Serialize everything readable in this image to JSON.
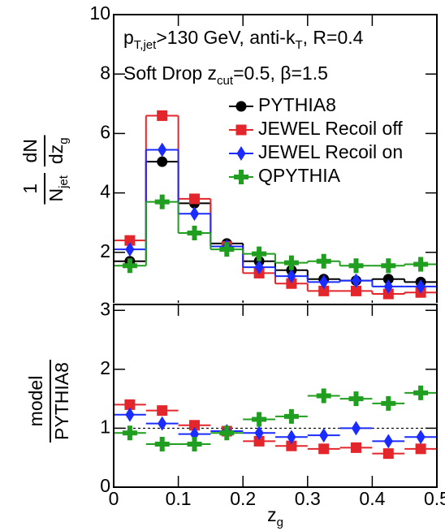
{
  "chart_data": [
    {
      "type": "histogram",
      "histtype": "step",
      "bins": [
        0,
        0.05,
        0.1,
        0.15,
        0.2,
        0.25,
        0.3,
        0.35,
        0.4,
        0.45,
        0.5
      ],
      "xlim": [
        0,
        0.5
      ],
      "xticks": [
        0,
        0.1,
        0.2,
        0.3,
        0.4,
        0.5
      ],
      "ylim": [
        0,
        10
      ],
      "yticks": [
        0,
        2,
        4,
        6,
        8,
        10
      ],
      "y_label": [
        {
          "num": [
            {
              "text": "1"
            }
          ],
          "den": [
            {
              "text": "N"
            },
            {
              "text": "jet",
              "sub": true
            }
          ]
        },
        {
          "num": [
            {
              "text": "dN"
            }
          ],
          "den": [
            {
              "text": "dz"
            },
            {
              "text": "g",
              "sub": true
            }
          ]
        }
      ],
      "annotations": [
        [
          {
            "text": "p"
          },
          {
            "text": "T,jet",
            "sub": true
          },
          {
            "text": ">130 GeV, anti-k"
          },
          {
            "text": "T",
            "sub": true
          },
          {
            "text": ", R=0.4"
          }
        ],
        [
          {
            "text": "Soft Drop z"
          },
          {
            "text": "cut",
            "sub": true
          },
          {
            "text": "=0.5, β=1.5"
          }
        ]
      ],
      "legend": "upper right",
      "series": [
        {
          "name": "PYTHIA8",
          "color": "#000000",
          "marker": "circle",
          "values": [
            1.7,
            5.05,
            3.65,
            2.3,
            1.7,
            1.4,
            1.1,
            1.05,
            1.1,
            1.0
          ]
        },
        {
          "name": "JEWEL Recoil off",
          "color": "#e3262b",
          "marker": "square",
          "values": [
            2.4,
            6.6,
            3.8,
            2.2,
            1.3,
            0.95,
            0.7,
            0.7,
            0.6,
            0.65
          ]
        },
        {
          "name": "JEWEL Recoil on",
          "color": "#1a2cff",
          "marker": "diamond",
          "values": [
            2.1,
            5.45,
            3.3,
            2.2,
            1.5,
            1.2,
            1.0,
            1.05,
            0.85,
            0.85
          ]
        },
        {
          "name": "QPYTHIA",
          "color": "#1f9e1f",
          "marker": "cross",
          "values": [
            1.55,
            3.7,
            2.65,
            2.1,
            1.95,
            1.65,
            1.7,
            1.55,
            1.55,
            1.6
          ]
        }
      ]
    },
    {
      "type": "histogram",
      "histtype": "points",
      "bins": [
        0,
        0.05,
        0.1,
        0.15,
        0.2,
        0.25,
        0.3,
        0.35,
        0.4,
        0.45,
        0.5
      ],
      "xlim": [
        0,
        0.5
      ],
      "xticks": [
        0,
        0.1,
        0.2,
        0.3,
        0.4,
        0.5
      ],
      "ylim": [
        0,
        3.1
      ],
      "yticks": [
        0,
        1,
        2,
        3
      ],
      "reference_line": 1,
      "x_label": [
        {
          "text": "z"
        },
        {
          "text": "g",
          "sub": true
        }
      ],
      "y_label": [
        {
          "num": [
            {
              "text": "model"
            }
          ],
          "den": [
            {
              "text": "PYTHIA8"
            }
          ]
        }
      ],
      "series": [
        {
          "color": "#e3262b",
          "marker": "square",
          "values": [
            1.4,
            1.3,
            1.05,
            0.95,
            0.78,
            0.7,
            0.65,
            0.67,
            0.57,
            0.65
          ]
        },
        {
          "color": "#1a2cff",
          "marker": "diamond",
          "values": [
            1.23,
            1.08,
            0.9,
            0.95,
            0.92,
            0.85,
            0.88,
            1.0,
            0.78,
            0.85
          ]
        },
        {
          "color": "#1f9e1f",
          "marker": "cross",
          "values": [
            0.92,
            0.73,
            0.73,
            0.92,
            1.15,
            1.2,
            1.55,
            1.5,
            1.42,
            1.6
          ]
        }
      ]
    }
  ]
}
